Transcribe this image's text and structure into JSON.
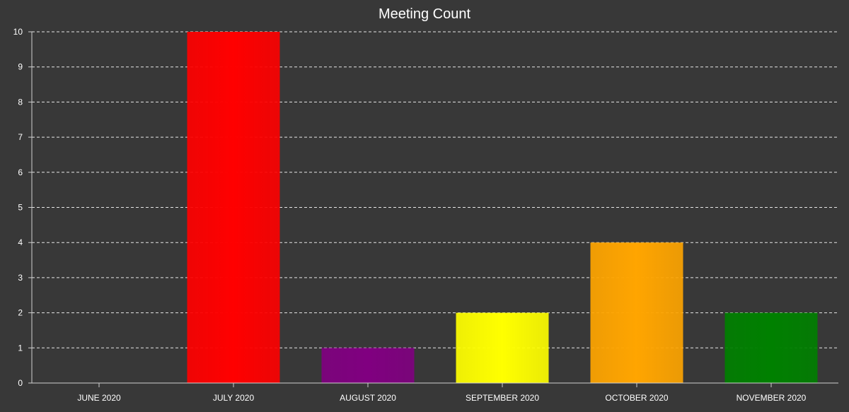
{
  "chart_data": {
    "type": "bar",
    "title": "Meeting Count",
    "categories": [
      "JUNE 2020",
      "JULY 2020",
      "AUGUST 2020",
      "SEPTEMBER 2020",
      "OCTOBER 2020",
      "NOVEMBER 2020"
    ],
    "values": [
      0,
      10,
      1,
      2,
      4,
      2
    ],
    "colors": [
      "#ff0000",
      "#ff0000",
      "#800080",
      "#ffff00",
      "#ffa500",
      "#008000"
    ],
    "ylim": [
      0,
      10
    ],
    "yticks": [
      "0",
      "1",
      "2",
      "3",
      "4",
      "5",
      "6",
      "7",
      "8",
      "9",
      "10"
    ],
    "xlabel": "",
    "ylabel": "",
    "grid": true,
    "legend": "none"
  }
}
